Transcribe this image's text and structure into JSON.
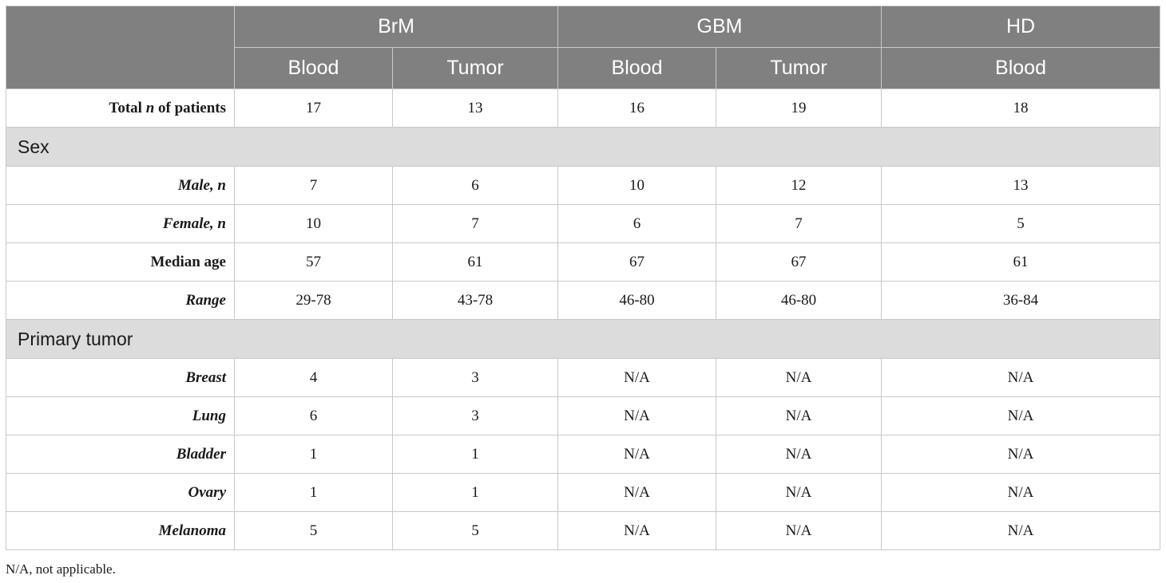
{
  "header": {
    "groups": [
      "BrM",
      "GBM",
      "HD"
    ],
    "subheaders": [
      "Blood",
      "Tumor",
      "Blood",
      "Tumor",
      "Blood"
    ]
  },
  "rows": {
    "total": {
      "label_prefix": "Total ",
      "label_italic": "n",
      "label_suffix": " of patients",
      "values": [
        "17",
        "13",
        "16",
        "19",
        "18"
      ]
    },
    "sex_section": "Sex",
    "male": {
      "label": "Male, n",
      "values": [
        "7",
        "6",
        "10",
        "12",
        "13"
      ]
    },
    "female": {
      "label": "Female, n",
      "values": [
        "10",
        "7",
        "6",
        "7",
        "5"
      ]
    },
    "median_age": {
      "label": "Median age",
      "values": [
        "57",
        "61",
        "67",
        "67",
        "61"
      ]
    },
    "range": {
      "label": "Range",
      "values": [
        "29-78",
        "43-78",
        "46-80",
        "46-80",
        "36-84"
      ]
    },
    "primary_section": "Primary tumor",
    "breast": {
      "label": "Breast",
      "values": [
        "4",
        "3",
        "N/A",
        "N/A",
        "N/A"
      ]
    },
    "lung": {
      "label": "Lung",
      "values": [
        "6",
        "3",
        "N/A",
        "N/A",
        "N/A"
      ]
    },
    "bladder": {
      "label": "Bladder",
      "values": [
        "1",
        "1",
        "N/A",
        "N/A",
        "N/A"
      ]
    },
    "ovary": {
      "label": "Ovary",
      "values": [
        "1",
        "1",
        "N/A",
        "N/A",
        "N/A"
      ]
    },
    "melanoma": {
      "label": "Melanoma",
      "values": [
        "5",
        "5",
        "N/A",
        "N/A",
        "N/A"
      ]
    }
  },
  "footnote": "N/A, not applicable."
}
